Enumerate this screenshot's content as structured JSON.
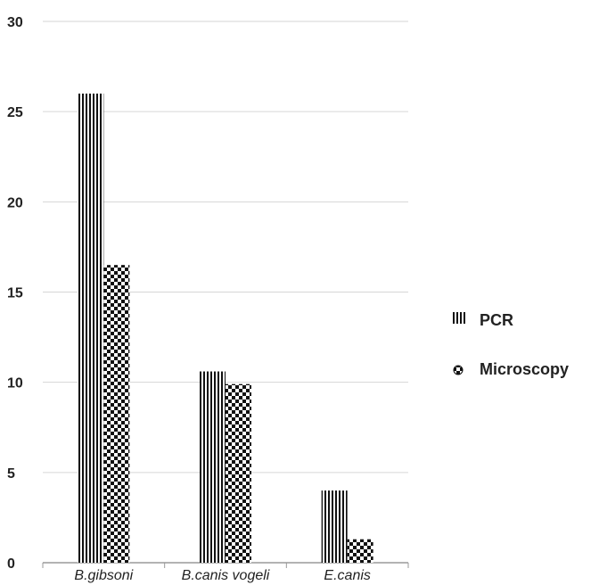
{
  "chart_data": {
    "type": "bar",
    "categories": [
      "B.gibsoni",
      "B.canis vogeli",
      "E.canis"
    ],
    "series": [
      {
        "name": "PCR",
        "values": [
          26,
          10.6,
          4
        ]
      },
      {
        "name": "Microscopy",
        "values": [
          16.5,
          9.9,
          1.3
        ]
      }
    ],
    "ylim": [
      0,
      30
    ],
    "yticks": [
      0,
      5,
      10,
      15,
      20,
      25,
      30
    ],
    "grid": true,
    "legend": "right"
  }
}
